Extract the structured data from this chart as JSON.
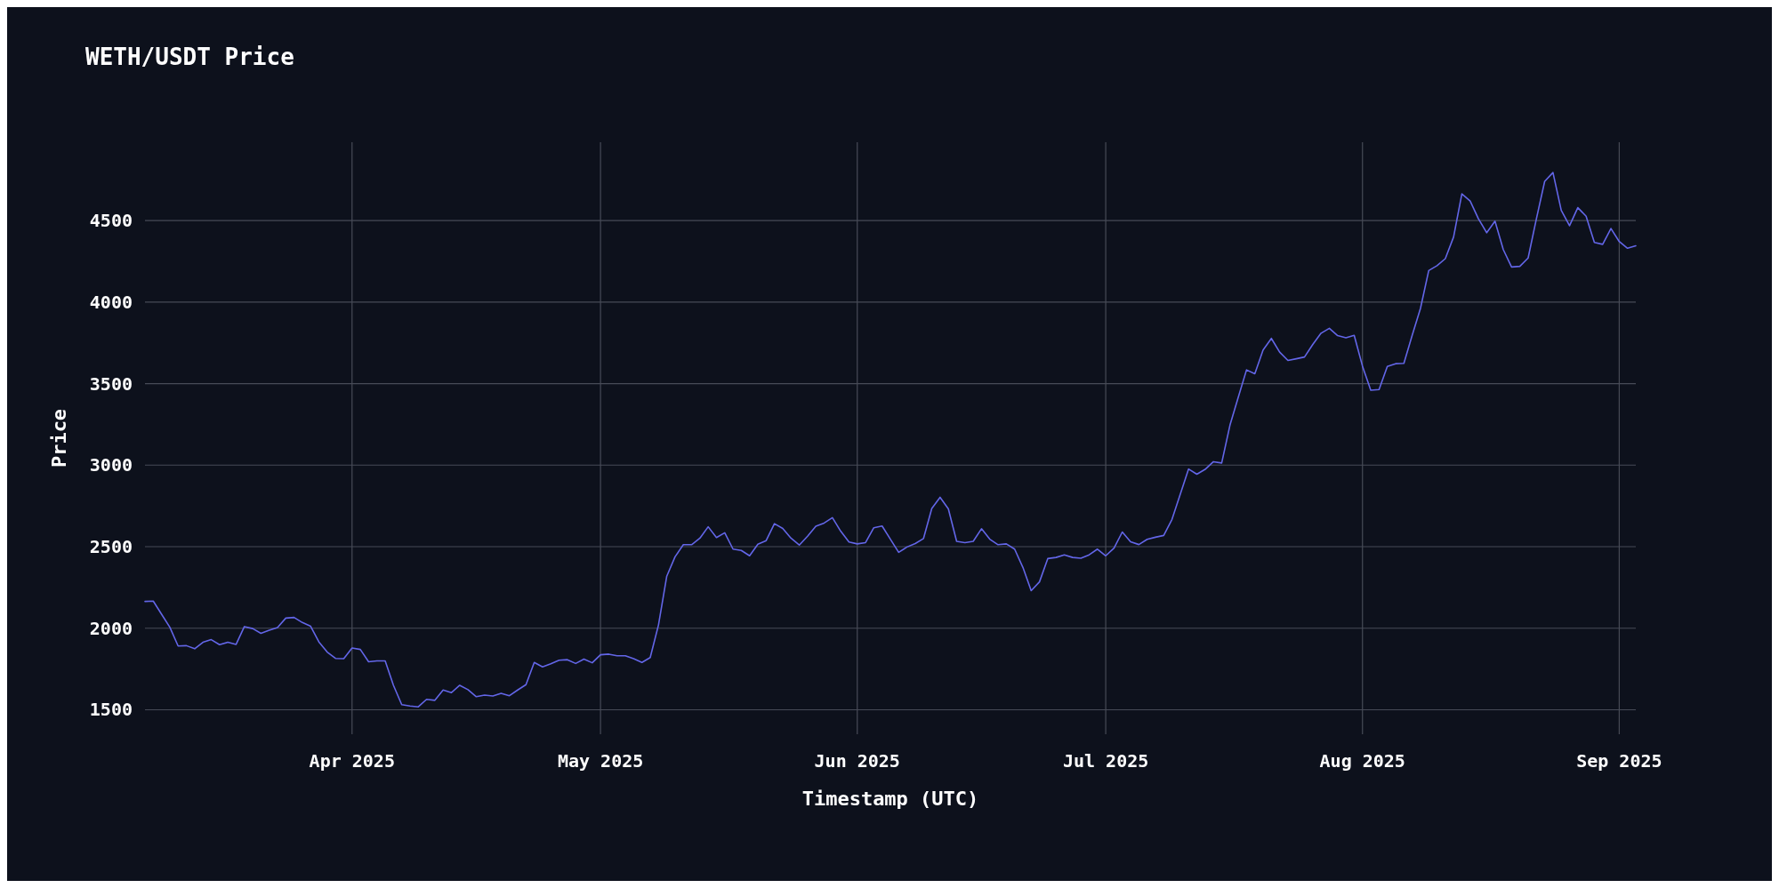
{
  "chart_data": {
    "type": "line",
    "title": "WETH/USDT Price",
    "xlabel": "Timestamp (UTC)",
    "ylabel": "Price",
    "xlim": [
      "2025-03-07",
      "2025-09-03"
    ],
    "ylim": [
      1350,
      4980
    ],
    "xticks": [
      {
        "value": "2025-04-01",
        "label": "Apr 2025"
      },
      {
        "value": "2025-05-01",
        "label": "May 2025"
      },
      {
        "value": "2025-06-01",
        "label": "Jun 2025"
      },
      {
        "value": "2025-07-01",
        "label": "Jul 2025"
      },
      {
        "value": "2025-08-01",
        "label": "Aug 2025"
      },
      {
        "value": "2025-09-01",
        "label": "Sep 2025"
      }
    ],
    "yticks": [
      1500,
      2000,
      2500,
      3000,
      3500,
      4000,
      4500
    ],
    "grid": true,
    "marker": "none",
    "line_style": "solid",
    "x": [
      "2025-03-07",
      "2025-03-08",
      "2025-03-09",
      "2025-03-10",
      "2025-03-11",
      "2025-03-12",
      "2025-03-13",
      "2025-03-14",
      "2025-03-15",
      "2025-03-16",
      "2025-03-17",
      "2025-03-18",
      "2025-03-19",
      "2025-03-20",
      "2025-03-21",
      "2025-03-22",
      "2025-03-23",
      "2025-03-24",
      "2025-03-25",
      "2025-03-26",
      "2025-03-27",
      "2025-03-28",
      "2025-03-29",
      "2025-03-30",
      "2025-03-31",
      "2025-04-01",
      "2025-04-02",
      "2025-04-03",
      "2025-04-04",
      "2025-04-05",
      "2025-04-06",
      "2025-04-07",
      "2025-04-08",
      "2025-04-09",
      "2025-04-10",
      "2025-04-11",
      "2025-04-12",
      "2025-04-13",
      "2025-04-14",
      "2025-04-15",
      "2025-04-16",
      "2025-04-17",
      "2025-04-18",
      "2025-04-19",
      "2025-04-20",
      "2025-04-21",
      "2025-04-22",
      "2025-04-23",
      "2025-04-24",
      "2025-04-25",
      "2025-04-26",
      "2025-04-27",
      "2025-04-28",
      "2025-04-29",
      "2025-04-30",
      "2025-05-01",
      "2025-05-02",
      "2025-05-03",
      "2025-05-04",
      "2025-05-05",
      "2025-05-06",
      "2025-05-07",
      "2025-05-08",
      "2025-05-09",
      "2025-05-10",
      "2025-05-11",
      "2025-05-12",
      "2025-05-13",
      "2025-05-14",
      "2025-05-15",
      "2025-05-16",
      "2025-05-17",
      "2025-05-18",
      "2025-05-19",
      "2025-05-20",
      "2025-05-21",
      "2025-05-22",
      "2025-05-23",
      "2025-05-24",
      "2025-05-25",
      "2025-05-26",
      "2025-05-27",
      "2025-05-28",
      "2025-05-29",
      "2025-05-30",
      "2025-05-31",
      "2025-06-01",
      "2025-06-02",
      "2025-06-03",
      "2025-06-04",
      "2025-06-05",
      "2025-06-06",
      "2025-06-07",
      "2025-06-08",
      "2025-06-09",
      "2025-06-10",
      "2025-06-11",
      "2025-06-12",
      "2025-06-13",
      "2025-06-14",
      "2025-06-15",
      "2025-06-16",
      "2025-06-17",
      "2025-06-18",
      "2025-06-19",
      "2025-06-20",
      "2025-06-21",
      "2025-06-22",
      "2025-06-23",
      "2025-06-24",
      "2025-06-25",
      "2025-06-26",
      "2025-06-27",
      "2025-06-28",
      "2025-06-29",
      "2025-06-30",
      "2025-07-01",
      "2025-07-02",
      "2025-07-03",
      "2025-07-04",
      "2025-07-05",
      "2025-07-06",
      "2025-07-07",
      "2025-07-08",
      "2025-07-09",
      "2025-07-10",
      "2025-07-11",
      "2025-07-12",
      "2025-07-13",
      "2025-07-14",
      "2025-07-15",
      "2025-07-16",
      "2025-07-17",
      "2025-07-18",
      "2025-07-19",
      "2025-07-20",
      "2025-07-21",
      "2025-07-22",
      "2025-07-23",
      "2025-07-24",
      "2025-07-25",
      "2025-07-26",
      "2025-07-27",
      "2025-07-28",
      "2025-07-29",
      "2025-07-30",
      "2025-07-31",
      "2025-08-01",
      "2025-08-02",
      "2025-08-03",
      "2025-08-04",
      "2025-08-05",
      "2025-08-06",
      "2025-08-07",
      "2025-08-08",
      "2025-08-09",
      "2025-08-10",
      "2025-08-11",
      "2025-08-12",
      "2025-08-13",
      "2025-08-14",
      "2025-08-15",
      "2025-08-16",
      "2025-08-17",
      "2025-08-18",
      "2025-08-19",
      "2025-08-20",
      "2025-08-21",
      "2025-08-22",
      "2025-08-23",
      "2025-08-24",
      "2025-08-25",
      "2025-08-26",
      "2025-08-27",
      "2025-08-28",
      "2025-08-29",
      "2025-08-30",
      "2025-08-31",
      "2025-09-01",
      "2025-09-02",
      "2025-09-03"
    ],
    "series": [
      {
        "color": "#6366e8",
        "values": [
          2164,
          2166,
          2086,
          2006,
          1891,
          1893,
          1874,
          1914,
          1930,
          1899,
          1914,
          1901,
          2010,
          1998,
          1969,
          1988,
          2004,
          2062,
          2066,
          2035,
          2012,
          1916,
          1854,
          1815,
          1813,
          1879,
          1870,
          1794,
          1800,
          1800,
          1650,
          1531,
          1523,
          1518,
          1564,
          1558,
          1621,
          1605,
          1650,
          1623,
          1580,
          1590,
          1584,
          1601,
          1586,
          1621,
          1654,
          1790,
          1763,
          1782,
          1804,
          1807,
          1784,
          1811,
          1788,
          1837,
          1841,
          1831,
          1831,
          1813,
          1790,
          1820,
          2020,
          2319,
          2438,
          2512,
          2512,
          2552,
          2622,
          2556,
          2585,
          2485,
          2477,
          2444,
          2515,
          2537,
          2641,
          2612,
          2552,
          2510,
          2564,
          2625,
          2645,
          2678,
          2595,
          2529,
          2517,
          2525,
          2616,
          2627,
          2546,
          2465,
          2498,
          2519,
          2550,
          2734,
          2803,
          2732,
          2533,
          2525,
          2533,
          2610,
          2546,
          2512,
          2517,
          2485,
          2373,
          2230,
          2284,
          2427,
          2434,
          2450,
          2434,
          2429,
          2450,
          2485,
          2444,
          2491,
          2590,
          2530,
          2513,
          2545,
          2558,
          2569,
          2667,
          2822,
          2976,
          2944,
          2974,
          3021,
          3013,
          3245,
          3416,
          3584,
          3560,
          3706,
          3777,
          3693,
          3642,
          3652,
          3663,
          3740,
          3809,
          3839,
          3794,
          3781,
          3796,
          3607,
          3459,
          3463,
          3605,
          3622,
          3624,
          3796,
          3961,
          4193,
          4223,
          4266,
          4399,
          4663,
          4620,
          4511,
          4425,
          4496,
          4322,
          4215,
          4219,
          4270,
          4511,
          4740,
          4794,
          4562,
          4468,
          4579,
          4526,
          4365,
          4354,
          4451,
          4371,
          4330,
          4345
        ]
      }
    ]
  }
}
